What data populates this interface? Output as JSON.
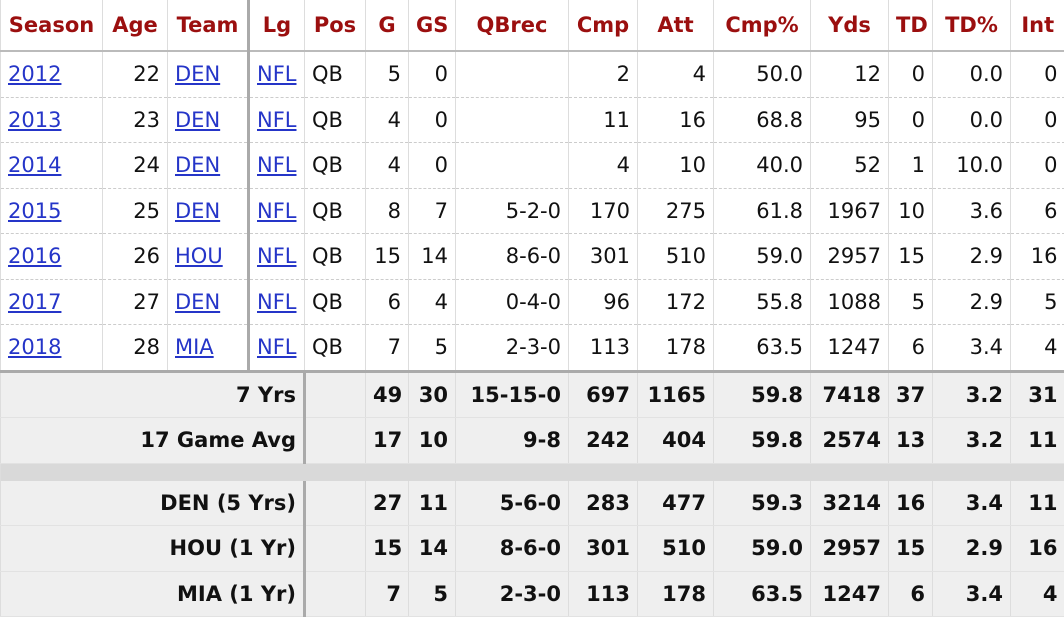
{
  "table": {
    "header": [
      "Season",
      "Age",
      "Team",
      "Lg",
      "Pos",
      "G",
      "GS",
      "QBrec",
      "Cmp",
      "Att",
      "Cmp%",
      "Yds",
      "TD",
      "TD%",
      "Int"
    ],
    "rows": [
      [
        "2012",
        "22",
        "DEN",
        "NFL",
        "QB",
        "5",
        "0",
        null,
        "2",
        "4",
        "50.0",
        "12",
        "0",
        "0.0",
        "0"
      ],
      [
        "2013",
        "23",
        "DEN",
        "NFL",
        "QB",
        "4",
        "0",
        null,
        "11",
        "16",
        "68.8",
        "95",
        "0",
        "0.0",
        "0"
      ],
      [
        "2014",
        "24",
        "DEN",
        "NFL",
        "QB",
        "4",
        "0",
        null,
        "4",
        "10",
        "40.0",
        "52",
        "1",
        "10.0",
        "0"
      ],
      [
        "2015",
        "25",
        "DEN",
        "NFL",
        "QB",
        "8",
        "7",
        "5-2-0",
        "170",
        "275",
        "61.8",
        "1967",
        "10",
        "3.6",
        "6"
      ],
      [
        "2016",
        "26",
        "HOU",
        "NFL",
        "QB",
        "15",
        "14",
        "8-6-0",
        "301",
        "510",
        "59.0",
        "2957",
        "15",
        "2.9",
        "16"
      ],
      [
        "2017",
        "27",
        "DEN",
        "NFL",
        "QB",
        "6",
        "4",
        "0-4-0",
        "96",
        "172",
        "55.8",
        "1088",
        "5",
        "2.9",
        "5"
      ],
      [
        "2018",
        "28",
        "MIA",
        "NFL",
        "QB",
        "7",
        "5",
        "2-3-0",
        "113",
        "178",
        "63.5",
        "1247",
        "6",
        "3.4",
        "4"
      ]
    ],
    "summary": [
      {
        "label": "7 Yrs",
        "values": [
          "49",
          "30",
          "15-15-0",
          "697",
          "1165",
          "59.8",
          "7418",
          "37",
          "3.2",
          "31"
        ]
      },
      {
        "label": "17 Game Avg",
        "values": [
          "17",
          "10",
          "9-8",
          "242",
          "404",
          "59.8",
          "2574",
          "13",
          "3.2",
          "11"
        ]
      }
    ],
    "team_totals": [
      {
        "label": "DEN (5 Yrs)",
        "values": [
          "27",
          "11",
          "5-6-0",
          "283",
          "477",
          "59.3",
          "3214",
          "16",
          "3.4",
          "11"
        ]
      },
      {
        "label": "HOU (1 Yr)",
        "values": [
          "15",
          "14",
          "8-6-0",
          "301",
          "510",
          "59.0",
          "2957",
          "15",
          "2.9",
          "16"
        ]
      },
      {
        "label": "MIA (1 Yr)",
        "values": [
          "7",
          "5",
          "2-3-0",
          "113",
          "178",
          "63.5",
          "1247",
          "6",
          "3.4",
          "4"
        ]
      }
    ]
  }
}
